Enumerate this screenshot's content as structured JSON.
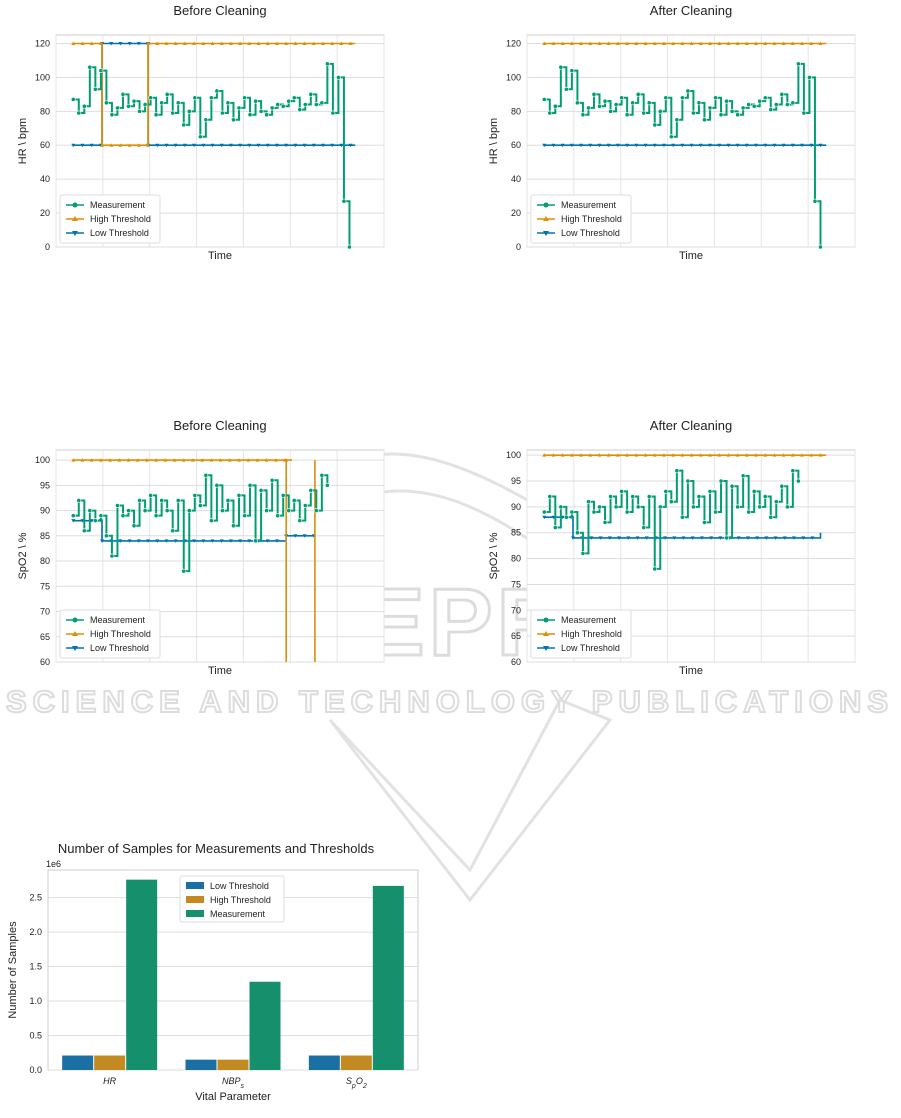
{
  "watermark": {
    "big": "SCITEPRESS",
    "small": "SCIENCE AND TECHNOLOGY PUBLICATIONS"
  },
  "colors": {
    "measurement": "#029e73",
    "high": "#de8f05",
    "low": "#0173b2",
    "bar_low": "#1a6fa3",
    "bar_high": "#c48a22",
    "bar_meas": "#158f6c"
  },
  "chart_data": [
    {
      "id": "hr_before",
      "type": "line",
      "title": "Before Cleaning",
      "xlabel": "Time",
      "ylabel": "HR \\ bpm",
      "ylim": [
        0,
        125
      ],
      "yticks": [
        0,
        20,
        40,
        60,
        80,
        100,
        120
      ],
      "x_domain": [
        -3,
        43
      ],
      "legend": [
        "Measurement",
        "High Threshold",
        "Low Threshold"
      ],
      "legend_loc": "lower-left",
      "series": {
        "measurement": [
          [
            0,
            87
          ],
          [
            1,
            79
          ],
          [
            2,
            83
          ],
          [
            3,
            106
          ],
          [
            4,
            93
          ],
          [
            5,
            104
          ],
          [
            6,
            85
          ],
          [
            7,
            78
          ],
          [
            8,
            82
          ],
          [
            9,
            90
          ],
          [
            10,
            83
          ],
          [
            11,
            86
          ],
          [
            12,
            80
          ],
          [
            13,
            84
          ],
          [
            14,
            88
          ],
          [
            15,
            78
          ],
          [
            16,
            85
          ],
          [
            17,
            90
          ],
          [
            18,
            79
          ],
          [
            19,
            85
          ],
          [
            20,
            72
          ],
          [
            21,
            80
          ],
          [
            22,
            88
          ],
          [
            23,
            65
          ],
          [
            24,
            75
          ],
          [
            25,
            88
          ],
          [
            26,
            92
          ],
          [
            27,
            79
          ],
          [
            28,
            85
          ],
          [
            29,
            75
          ],
          [
            30,
            82
          ],
          [
            31,
            88
          ],
          [
            32,
            78
          ],
          [
            33,
            86
          ],
          [
            34,
            80
          ],
          [
            35,
            78
          ],
          [
            36,
            82
          ],
          [
            37,
            84
          ],
          [
            38,
            83
          ],
          [
            39,
            86
          ],
          [
            40,
            88
          ],
          [
            41,
            81
          ],
          [
            42,
            84
          ],
          [
            43,
            90
          ],
          [
            44,
            84
          ],
          [
            45,
            85
          ],
          [
            46,
            108
          ],
          [
            47,
            79
          ],
          [
            48,
            100
          ],
          [
            49,
            27
          ],
          [
            50,
            0
          ]
        ],
        "high": [
          [
            0,
            120
          ],
          [
            5,
            120
          ],
          [
            5,
            60
          ],
          [
            13,
            60
          ],
          [
            13,
            120
          ],
          [
            49,
            120
          ]
        ],
        "low": [
          [
            0,
            60
          ],
          [
            5,
            60
          ],
          [
            5,
            120
          ],
          [
            13,
            120
          ],
          [
            13,
            60
          ],
          [
            49,
            60
          ]
        ]
      }
    },
    {
      "id": "hr_after",
      "type": "line",
      "title": "After Cleaning",
      "xlabel": "Time",
      "ylabel": "HR \\ bpm",
      "ylim": [
        0,
        125
      ],
      "yticks": [
        0,
        20,
        40,
        60,
        80,
        100,
        120
      ],
      "x_domain": [
        -3,
        43
      ],
      "legend": [
        "Measurement",
        "High Threshold",
        "Low Threshold"
      ],
      "legend_loc": "lower-left",
      "series": {
        "measurement": [
          [
            0,
            87
          ],
          [
            1,
            79
          ],
          [
            2,
            83
          ],
          [
            3,
            106
          ],
          [
            4,
            93
          ],
          [
            5,
            104
          ],
          [
            6,
            85
          ],
          [
            7,
            78
          ],
          [
            8,
            82
          ],
          [
            9,
            90
          ],
          [
            10,
            83
          ],
          [
            11,
            86
          ],
          [
            12,
            80
          ],
          [
            13,
            84
          ],
          [
            14,
            88
          ],
          [
            15,
            78
          ],
          [
            16,
            85
          ],
          [
            17,
            90
          ],
          [
            18,
            79
          ],
          [
            19,
            85
          ],
          [
            20,
            72
          ],
          [
            21,
            80
          ],
          [
            22,
            88
          ],
          [
            23,
            65
          ],
          [
            24,
            75
          ],
          [
            25,
            88
          ],
          [
            26,
            92
          ],
          [
            27,
            79
          ],
          [
            28,
            85
          ],
          [
            29,
            75
          ],
          [
            30,
            82
          ],
          [
            31,
            88
          ],
          [
            32,
            78
          ],
          [
            33,
            86
          ],
          [
            34,
            80
          ],
          [
            35,
            78
          ],
          [
            36,
            82
          ],
          [
            37,
            84
          ],
          [
            38,
            83
          ],
          [
            39,
            86
          ],
          [
            40,
            88
          ],
          [
            41,
            81
          ],
          [
            42,
            84
          ],
          [
            43,
            90
          ],
          [
            44,
            84
          ],
          [
            45,
            85
          ],
          [
            46,
            108
          ],
          [
            47,
            79
          ],
          [
            48,
            100
          ],
          [
            49,
            27
          ],
          [
            50,
            0
          ]
        ],
        "high": [
          [
            0,
            120
          ],
          [
            49,
            120
          ]
        ],
        "low": [
          [
            0,
            60
          ],
          [
            49,
            60
          ]
        ]
      }
    },
    {
      "id": "spo2_before",
      "type": "line",
      "title": "Before Cleaning",
      "xlabel": "Time",
      "ylabel": "SpO2 \\ %",
      "ylim": [
        60,
        102
      ],
      "yticks": [
        60,
        65,
        70,
        75,
        80,
        85,
        90,
        95,
        100
      ],
      "x_domain": [
        -3,
        43
      ],
      "legend": [
        "Measurement",
        "High Threshold",
        "Low Threshold"
      ],
      "legend_loc": "lower-left",
      "series": {
        "measurement": [
          [
            0,
            89
          ],
          [
            1,
            92
          ],
          [
            2,
            86
          ],
          [
            3,
            90
          ],
          [
            4,
            88
          ],
          [
            5,
            89
          ],
          [
            6,
            85
          ],
          [
            7,
            81
          ],
          [
            8,
            91
          ],
          [
            9,
            89
          ],
          [
            10,
            90
          ],
          [
            11,
            87
          ],
          [
            12,
            92
          ],
          [
            13,
            90
          ],
          [
            14,
            93
          ],
          [
            15,
            89
          ],
          [
            16,
            92
          ],
          [
            17,
            90
          ],
          [
            18,
            86
          ],
          [
            19,
            92
          ],
          [
            20,
            78
          ],
          [
            21,
            90
          ],
          [
            22,
            93
          ],
          [
            23,
            91
          ],
          [
            24,
            97
          ],
          [
            25,
            88
          ],
          [
            26,
            95
          ],
          [
            27,
            90
          ],
          [
            28,
            92
          ],
          [
            29,
            87
          ],
          [
            30,
            93
          ],
          [
            31,
            89
          ],
          [
            32,
            95
          ],
          [
            33,
            84
          ],
          [
            34,
            94
          ],
          [
            35,
            90
          ],
          [
            36,
            96
          ],
          [
            37,
            89
          ],
          [
            38,
            93
          ],
          [
            39,
            90
          ],
          [
            40,
            92
          ],
          [
            41,
            88
          ],
          [
            42,
            91
          ],
          [
            43,
            94
          ],
          [
            44,
            90
          ],
          [
            45,
            97
          ],
          [
            46,
            95
          ]
        ],
        "high": [
          [
            0,
            100
          ],
          [
            37,
            100
          ],
          [
            37,
            60
          ],
          [
            37,
            100
          ],
          [
            38,
            100
          ]
        ],
        "low": [
          [
            0,
            88
          ],
          [
            5,
            88
          ],
          [
            5,
            84
          ],
          [
            37,
            84
          ],
          [
            37,
            85
          ],
          [
            42,
            85
          ]
        ],
        "high2": [
          [
            42,
            60
          ],
          [
            42,
            100
          ]
        ]
      }
    },
    {
      "id": "spo2_after",
      "type": "line",
      "title": "After Cleaning",
      "xlabel": "Time",
      "ylabel": "SpO2 \\ %",
      "ylim": [
        60,
        101
      ],
      "yticks": [
        60,
        65,
        70,
        75,
        80,
        85,
        90,
        95,
        100
      ],
      "x_domain": [
        -3,
        43
      ],
      "legend": [
        "Measurement",
        "High Threshold",
        "Low Threshold"
      ],
      "legend_loc": "lower-left",
      "series": {
        "measurement": [
          [
            0,
            89
          ],
          [
            1,
            92
          ],
          [
            2,
            86
          ],
          [
            3,
            90
          ],
          [
            4,
            88
          ],
          [
            5,
            89
          ],
          [
            6,
            85
          ],
          [
            7,
            81
          ],
          [
            8,
            91
          ],
          [
            9,
            89
          ],
          [
            10,
            90
          ],
          [
            11,
            87
          ],
          [
            12,
            92
          ],
          [
            13,
            90
          ],
          [
            14,
            93
          ],
          [
            15,
            89
          ],
          [
            16,
            92
          ],
          [
            17,
            90
          ],
          [
            18,
            86
          ],
          [
            19,
            92
          ],
          [
            20,
            78
          ],
          [
            21,
            90
          ],
          [
            22,
            93
          ],
          [
            23,
            91
          ],
          [
            24,
            97
          ],
          [
            25,
            88
          ],
          [
            26,
            95
          ],
          [
            27,
            90
          ],
          [
            28,
            92
          ],
          [
            29,
            87
          ],
          [
            30,
            93
          ],
          [
            31,
            89
          ],
          [
            32,
            95
          ],
          [
            33,
            84
          ],
          [
            34,
            94
          ],
          [
            35,
            90
          ],
          [
            36,
            96
          ],
          [
            37,
            89
          ],
          [
            38,
            93
          ],
          [
            39,
            90
          ],
          [
            40,
            92
          ],
          [
            41,
            88
          ],
          [
            42,
            91
          ],
          [
            43,
            94
          ],
          [
            44,
            90
          ],
          [
            45,
            97
          ],
          [
            46,
            95
          ]
        ],
        "high": [
          [
            0,
            100
          ],
          [
            49,
            100
          ]
        ],
        "low": [
          [
            0,
            88
          ],
          [
            5,
            88
          ],
          [
            5,
            84
          ],
          [
            48,
            84
          ],
          [
            48,
            85
          ]
        ]
      }
    },
    {
      "id": "samples",
      "type": "bar",
      "title": "Number of Samples for Measurements and Thresholds",
      "xlabel": "Vital Parameter",
      "ylabel": "Number of Samples",
      "multiplier": "1e6",
      "ylim": [
        0,
        2.9
      ],
      "yticks": [
        0.0,
        0.5,
        1.0,
        1.5,
        2.0,
        2.5
      ],
      "ytick_labels": [
        "0.0",
        "0.5",
        "1.0",
        "1.5",
        "2.0",
        "2.5"
      ],
      "categories": [
        "HR",
        "NBPs",
        "SpO2"
      ],
      "legend_loc": "top-center",
      "series": [
        {
          "name": "Low Threshold",
          "values": [
            0.21,
            0.15,
            0.21
          ]
        },
        {
          "name": "High Threshold",
          "values": [
            0.21,
            0.15,
            0.21
          ]
        },
        {
          "name": "Measurement",
          "values": [
            2.76,
            1.28,
            2.67
          ]
        }
      ]
    }
  ]
}
